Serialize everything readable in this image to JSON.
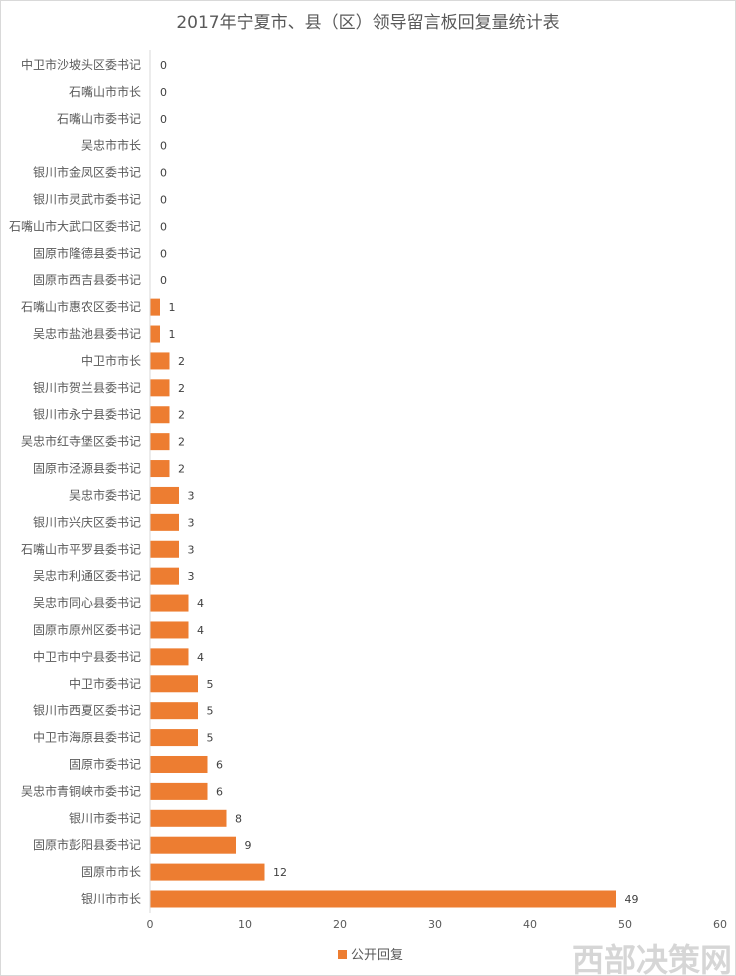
{
  "chart_data": {
    "type": "bar",
    "orientation": "horizontal",
    "title": "2017年宁夏市、县（区）领导留言板回复量统计表",
    "categories": [
      "中卫市沙坡头区委书记",
      "石嘴山市市长",
      "石嘴山市委书记",
      "吴忠市市长",
      "银川市金凤区委书记",
      "银川市灵武市委书记",
      "石嘴山市大武口区委书记",
      "固原市隆德县委书记",
      "固原市西吉县委书记",
      "石嘴山市惠农区委书记",
      "吴忠市盐池县委书记",
      "中卫市市长",
      "银川市贺兰县委书记",
      "银川市永宁县委书记",
      "吴忠市红寺堡区委书记",
      "固原市泾源县委书记",
      "吴忠市委书记",
      "银川市兴庆区委书记",
      "石嘴山市平罗县委书记",
      "吴忠市利通区委书记",
      "吴忠市同心县委书记",
      "固原市原州区委书记",
      "中卫市中宁县委书记",
      "中卫市委书记",
      "银川市西夏区委书记",
      "中卫市海原县委书记",
      "固原市委书记",
      "吴忠市青铜峡市委书记",
      "银川市委书记",
      "固原市彭阳县委书记",
      "固原市市长",
      "银川市市长"
    ],
    "series": [
      {
        "name": "公开回复",
        "values": [
          0,
          0,
          0,
          0,
          0,
          0,
          0,
          0,
          0,
          1,
          1,
          2,
          2,
          2,
          2,
          2,
          3,
          3,
          3,
          3,
          4,
          4,
          4,
          5,
          5,
          5,
          6,
          6,
          8,
          9,
          12,
          49
        ],
        "color": "#ed7d31"
      }
    ],
    "xlim": [
      0,
      60
    ],
    "xticks": [
      "0",
      "10",
      "20",
      "30",
      "40",
      "50",
      "60"
    ],
    "xlabel": "",
    "ylabel": "",
    "grid": false,
    "data_labels": true,
    "legend": "bottom"
  },
  "watermark": "西部决策网"
}
